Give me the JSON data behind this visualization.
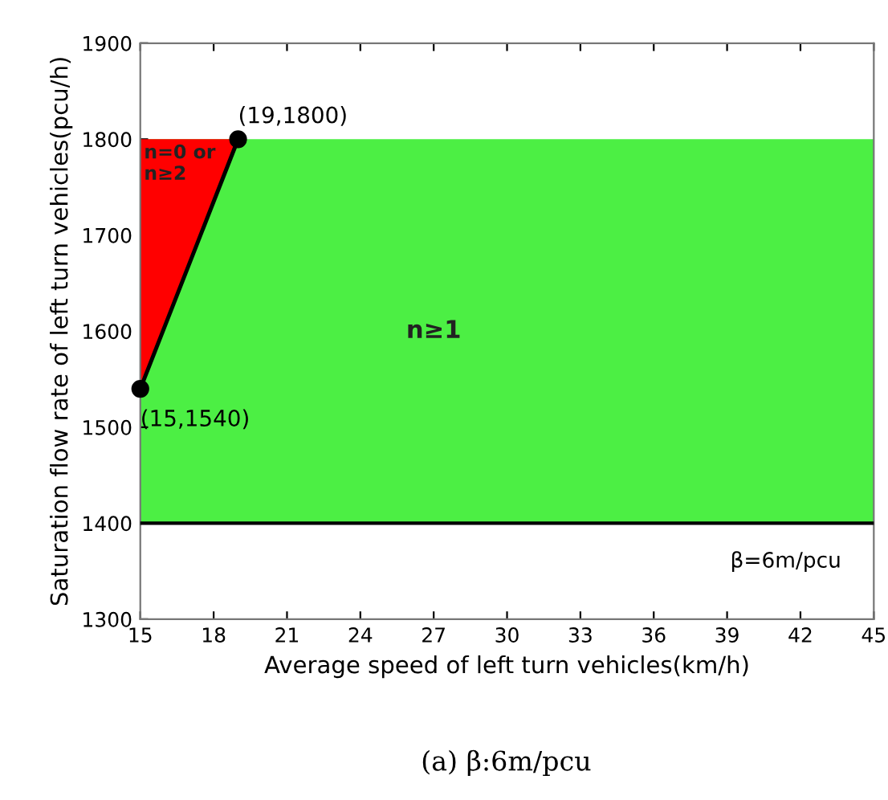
{
  "chart_data": {
    "type": "area",
    "xlabel": "Average speed of left turn vehicles(km/h)",
    "ylabel": "Saturation flow rate of left turn vehicles(pcu/h)",
    "xlim": [
      15,
      45
    ],
    "xticks": [
      15,
      18,
      21,
      24,
      27,
      30,
      33,
      36,
      39,
      42,
      45
    ],
    "ylim": [
      1300,
      1900
    ],
    "yticks": [
      1300,
      1400,
      1500,
      1600,
      1700,
      1800,
      1900
    ],
    "grid": false,
    "series": [
      {
        "color": "#ff0000",
        "x": [
          15,
          19
        ],
        "values": [
          1540,
          1800
        ],
        "marker": "circle"
      }
    ],
    "bands": [
      {
        "axis": "y",
        "from": 1400,
        "to": 1800,
        "label": "n≥1",
        "color": "#4cef44"
      }
    ],
    "ref_lines": [
      {
        "axis": "y",
        "value": 1400,
        "color": "#000000"
      }
    ],
    "annotations": [
      {
        "text": "(19,1800)",
        "x": 19,
        "y": 1800
      },
      {
        "text": "(15,1540)",
        "x": 15,
        "y": 1540
      },
      "n=0 or\nn≥2",
      "β=6m/pcu",
      "(a) β:6m/pcu"
    ]
  }
}
